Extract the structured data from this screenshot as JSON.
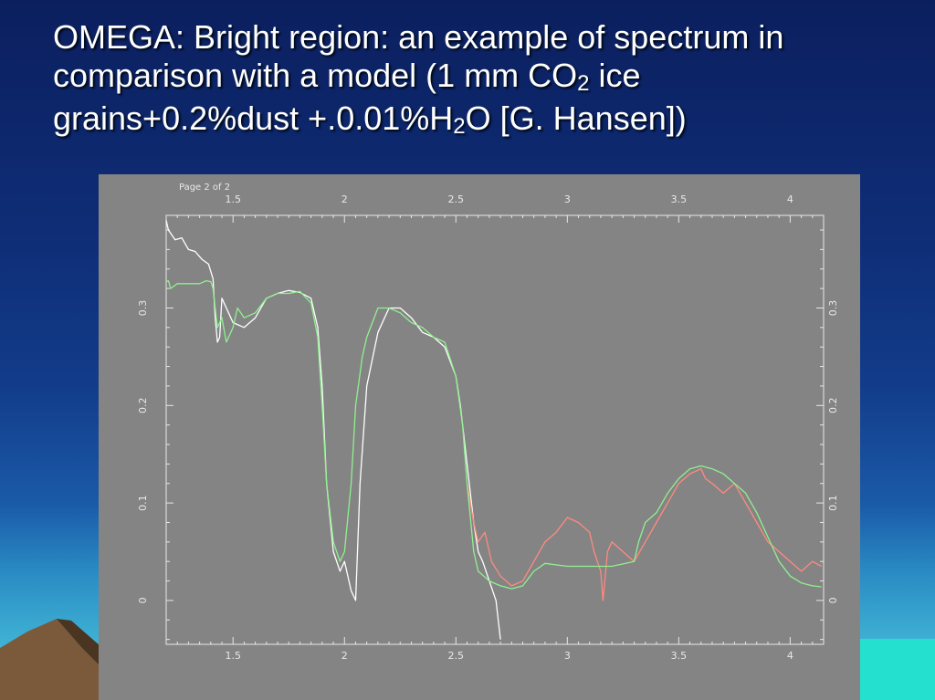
{
  "slide": {
    "title_line1": "OMEGA: Bright region: an example of spectrum in",
    "title_line2_a": "comparison with a model (1 mm CO",
    "title_line2_sub": "2",
    "title_line2_b": " ice",
    "title_line3_a": "grains+0.2%dust +.0.01%H",
    "title_line3_sub": "2",
    "title_line3_b": "O [G. Hansen])"
  },
  "plot": {
    "page_label": "Page  2  of  2"
  },
  "colors": {
    "panel_bg": "#848484",
    "axis": "#e8e8e8",
    "observed": "#ffffff",
    "observed_long": "#ff8a80",
    "model": "#8ff08f"
  },
  "chart_data": {
    "type": "line",
    "title": "",
    "xlabel": "",
    "ylabel": "",
    "xlim": [
      1.2,
      4.15
    ],
    "ylim": [
      -0.045,
      0.395
    ],
    "x_ticks": [
      1.5,
      2,
      2.5,
      3,
      3.5,
      4
    ],
    "x_tick_labels": [
      "1.5",
      "2",
      "2.5",
      "3",
      "3.5",
      "4"
    ],
    "y_ticks": [
      0,
      0.1,
      0.2,
      0.3
    ],
    "y_tick_labels": [
      "0",
      "0.1",
      "0.2",
      "0.3"
    ],
    "grid": false,
    "series": [
      {
        "color": "#ffffff",
        "x": [
          1.2,
          1.21,
          1.24,
          1.27,
          1.3,
          1.33,
          1.36,
          1.39,
          1.41,
          1.42,
          1.43,
          1.44,
          1.45,
          1.47,
          1.5,
          1.55,
          1.6,
          1.65,
          1.7,
          1.75,
          1.8,
          1.85,
          1.88,
          1.9,
          1.92,
          1.95,
          1.98,
          2.0,
          2.03,
          2.05,
          2.07,
          2.1,
          2.15,
          2.2,
          2.25,
          2.3,
          2.35,
          2.4,
          2.45,
          2.5,
          2.52,
          2.55,
          2.58,
          2.6,
          2.62,
          2.65,
          2.68,
          2.7
        ],
        "y": [
          0.39,
          0.38,
          0.37,
          0.372,
          0.36,
          0.358,
          0.35,
          0.345,
          0.33,
          0.29,
          0.265,
          0.27,
          0.31,
          0.3,
          0.285,
          0.28,
          0.29,
          0.31,
          0.315,
          0.318,
          0.316,
          0.31,
          0.28,
          0.22,
          0.12,
          0.05,
          0.03,
          0.04,
          0.01,
          0.0,
          0.12,
          0.22,
          0.275,
          0.3,
          0.3,
          0.29,
          0.275,
          0.27,
          0.26,
          0.23,
          0.2,
          0.14,
          0.08,
          0.05,
          0.04,
          0.02,
          0.0,
          -0.04
        ]
      },
      {
        "color": "#ff8a80",
        "x": [
          2.55,
          2.58,
          2.6,
          2.63,
          2.66,
          2.7,
          2.75,
          2.8,
          2.85,
          2.9,
          2.95,
          3.0,
          3.05,
          3.1,
          3.12,
          3.15,
          3.16,
          3.18,
          3.2,
          3.25,
          3.3,
          3.35,
          3.4,
          3.45,
          3.5,
          3.55,
          3.6,
          3.62,
          3.65,
          3.7,
          3.75,
          3.8,
          3.85,
          3.9,
          3.95,
          4.0,
          4.05,
          4.1,
          4.14
        ],
        "y": [
          0.12,
          0.08,
          0.06,
          0.07,
          0.04,
          0.025,
          0.015,
          0.02,
          0.04,
          0.06,
          0.07,
          0.085,
          0.08,
          0.07,
          0.05,
          0.03,
          0.0,
          0.05,
          0.06,
          0.05,
          0.04,
          0.06,
          0.08,
          0.1,
          0.12,
          0.13,
          0.135,
          0.125,
          0.12,
          0.11,
          0.12,
          0.1,
          0.08,
          0.06,
          0.05,
          0.04,
          0.03,
          0.04,
          0.035
        ]
      },
      {
        "color": "#8ff08f",
        "x": [
          1.2,
          1.21,
          1.22,
          1.25,
          1.3,
          1.35,
          1.38,
          1.4,
          1.41,
          1.42,
          1.43,
          1.45,
          1.47,
          1.5,
          1.52,
          1.55,
          1.6,
          1.65,
          1.7,
          1.75,
          1.8,
          1.85,
          1.88,
          1.9,
          1.92,
          1.95,
          1.98,
          2.0,
          2.03,
          2.05,
          2.08,
          2.1,
          2.15,
          2.2,
          2.25,
          2.3,
          2.35,
          2.4,
          2.45,
          2.5,
          2.53,
          2.55,
          2.58,
          2.6,
          2.65,
          2.7,
          2.75,
          2.8,
          2.85,
          2.9,
          3.0,
          3.1,
          3.2,
          3.3,
          3.32,
          3.35,
          3.4,
          3.45,
          3.5,
          3.55,
          3.6,
          3.65,
          3.7,
          3.75,
          3.8,
          3.85,
          3.9,
          3.95,
          4.0,
          4.05,
          4.1,
          4.14
        ],
        "y": [
          0.327,
          0.328,
          0.32,
          0.325,
          0.325,
          0.325,
          0.328,
          0.327,
          0.32,
          0.3,
          0.28,
          0.29,
          0.265,
          0.28,
          0.3,
          0.29,
          0.295,
          0.31,
          0.315,
          0.315,
          0.317,
          0.305,
          0.27,
          0.2,
          0.12,
          0.06,
          0.04,
          0.05,
          0.12,
          0.2,
          0.25,
          0.27,
          0.3,
          0.3,
          0.295,
          0.285,
          0.28,
          0.27,
          0.265,
          0.23,
          0.18,
          0.12,
          0.05,
          0.03,
          0.02,
          0.015,
          0.012,
          0.015,
          0.03,
          0.038,
          0.035,
          0.035,
          0.035,
          0.04,
          0.06,
          0.08,
          0.09,
          0.11,
          0.125,
          0.135,
          0.138,
          0.135,
          0.13,
          0.12,
          0.11,
          0.09,
          0.065,
          0.04,
          0.025,
          0.018,
          0.015,
          0.014
        ]
      }
    ]
  }
}
